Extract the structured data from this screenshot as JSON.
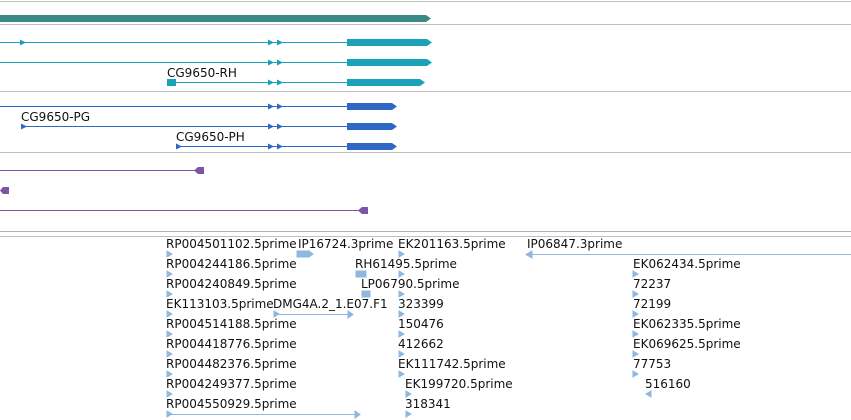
{
  "colors": {
    "gene": "#3a8a86",
    "transcript_rh": "#1aa3b8",
    "transcript_pg": "#2f68c4",
    "purple": "#7d55a4",
    "est": "#8fb7df",
    "separator": "#bfbfbf"
  },
  "labels": {
    "cg9650_rh": "CG9650-RH",
    "cg9650_pg": "CG9650-PG",
    "cg9650_ph": "CG9650-PH"
  },
  "est_labels": [
    "RP004501102.5prime",
    "IP16724.3prime",
    "EK201163.5prime",
    "IP06847.3prime",
    "RP004244186.5prime",
    "RH61495.5prime",
    "EK062434.5prime",
    "RP004240849.5prime",
    "LP06790.5prime",
    "72237",
    "EK113103.5prime",
    "DMG4A.2_1.E07.F1",
    "323399",
    "72199",
    "RP004514188.5prime",
    "150476",
    "EK062335.5prime",
    "RP004418776.5prime",
    "412662",
    "EK069625.5prime",
    "RP004482376.5prime",
    "EK111742.5prime",
    "77753",
    "RP004249377.5prime",
    "EK199720.5prime",
    "516160",
    "RP004550929.5prime",
    "318341"
  ]
}
